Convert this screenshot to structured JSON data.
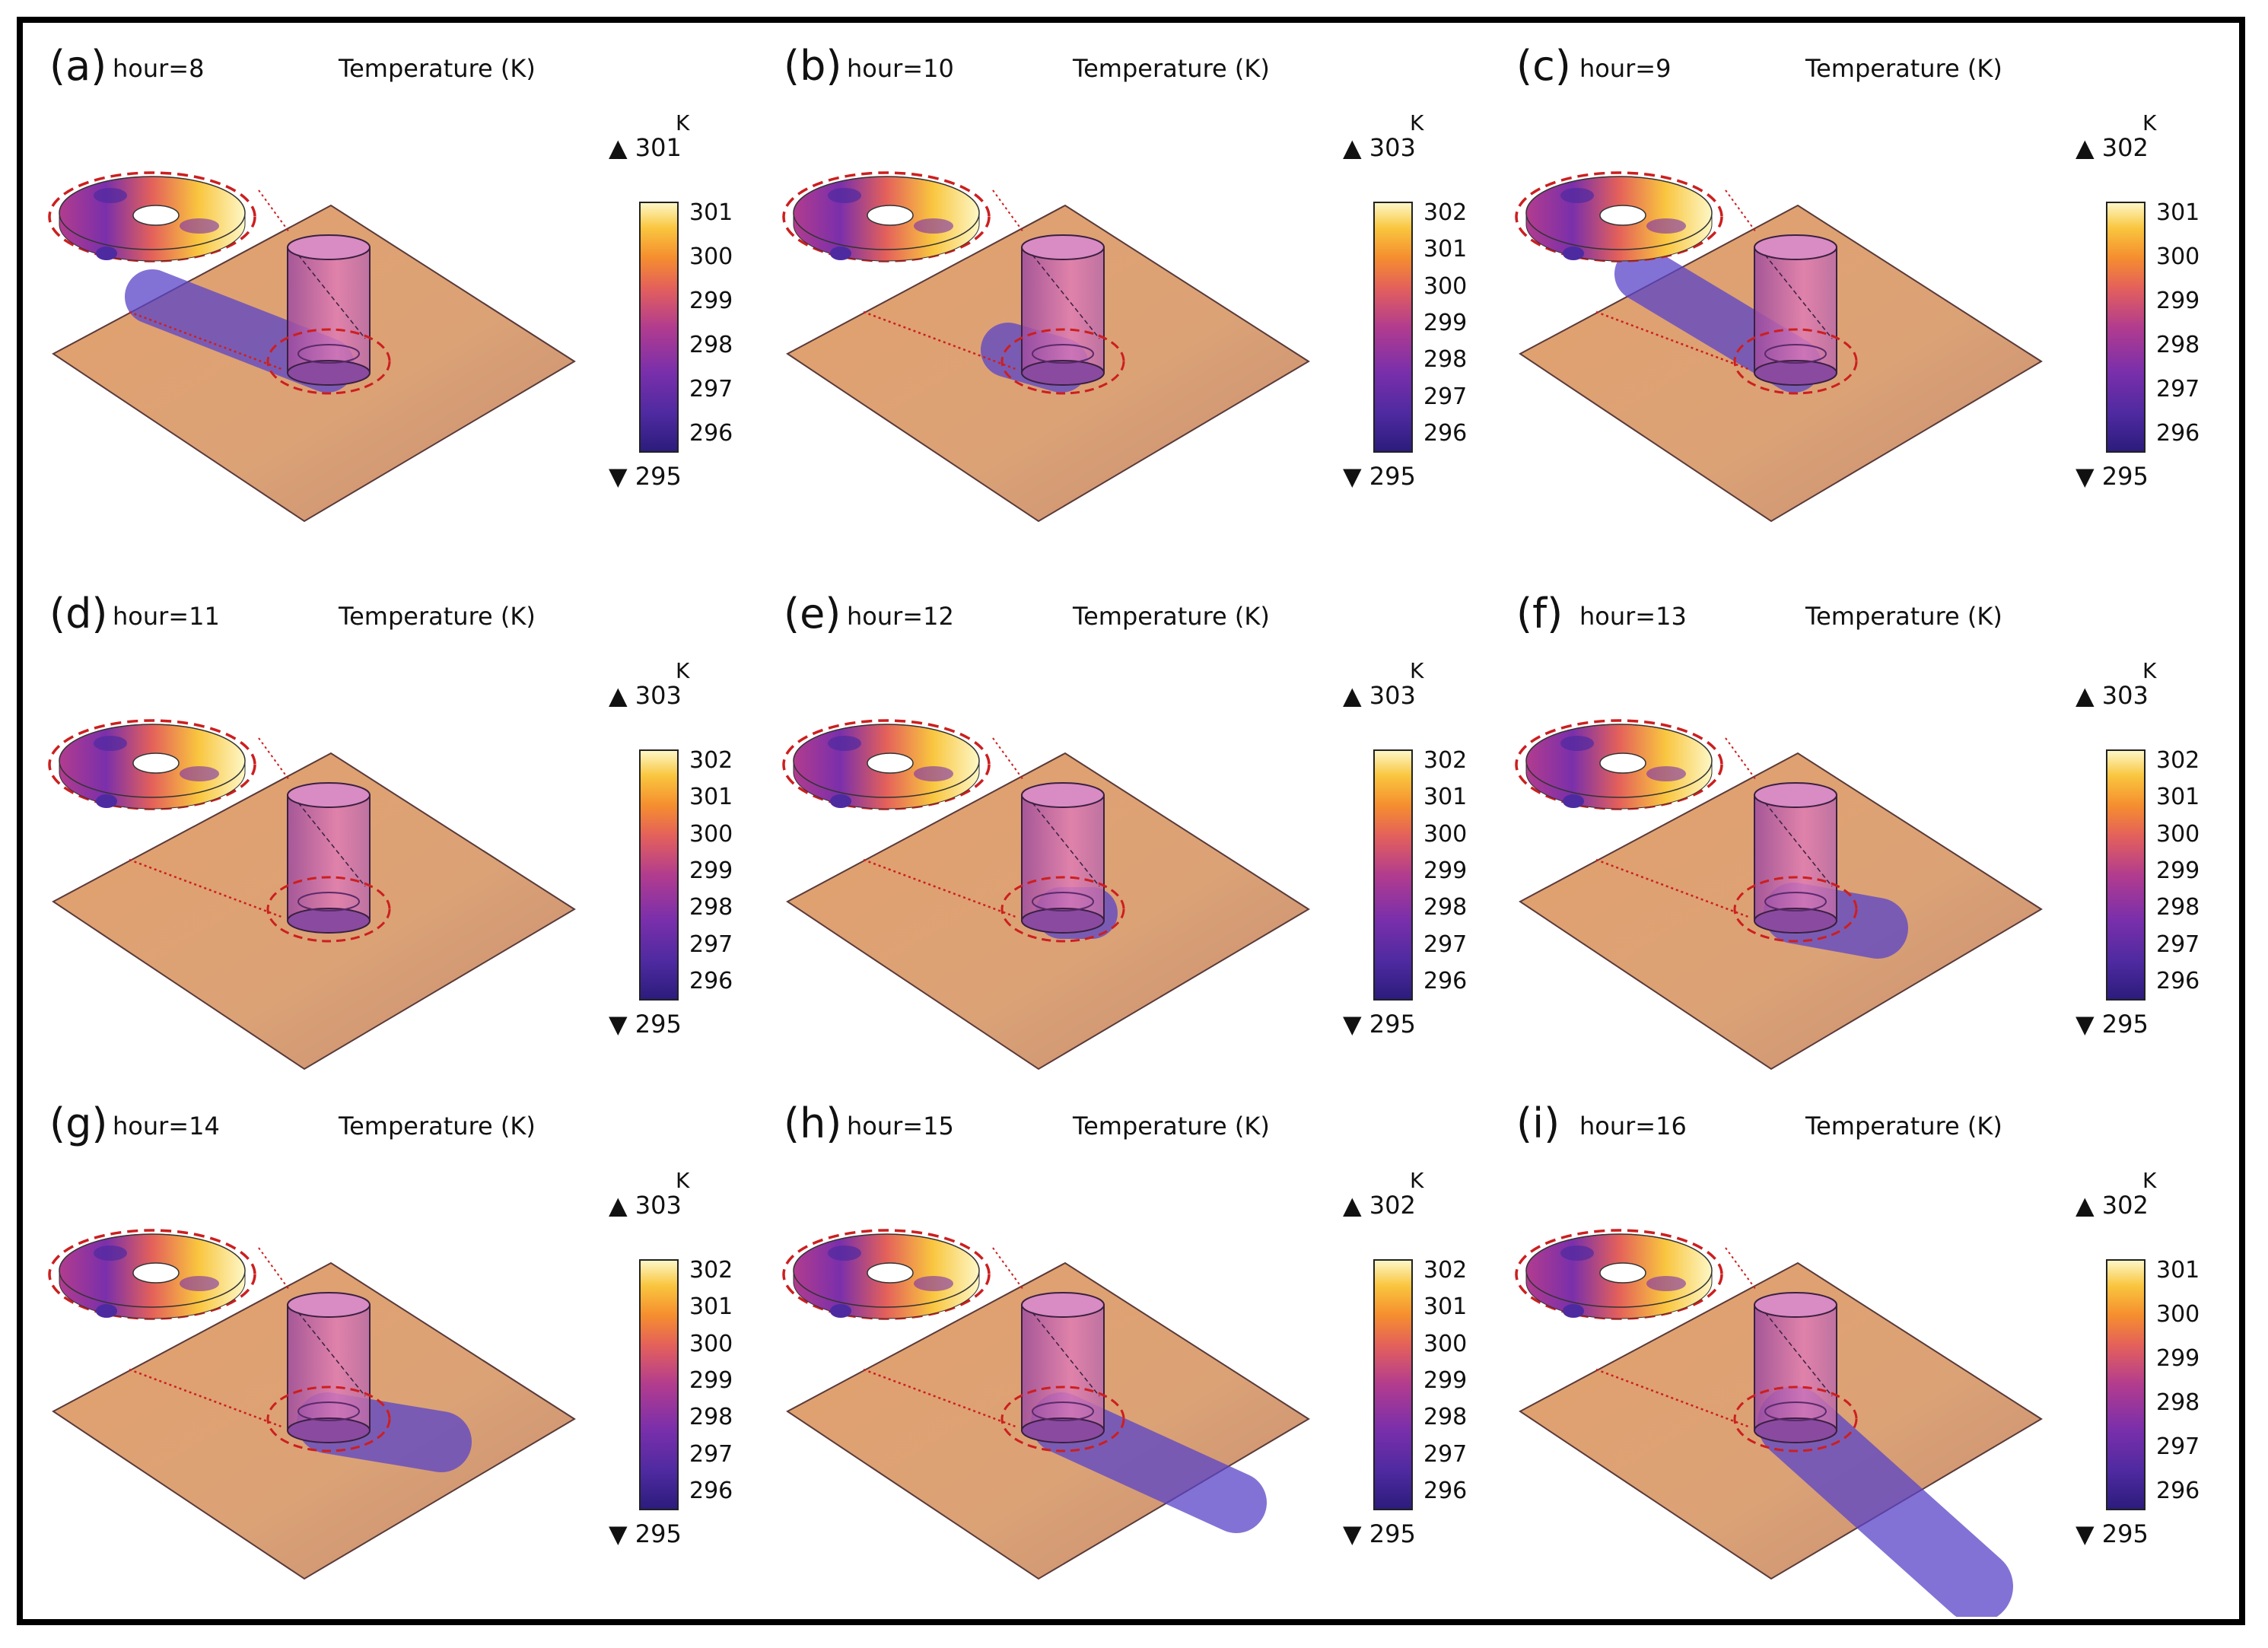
{
  "figure": {
    "colorbar_unit": "K",
    "colormap": [
      "#2c1c7c",
      "#4e2aa0",
      "#7a2fab",
      "#b23c8e",
      "#e4615a",
      "#f58e2f",
      "#f9c63f",
      "#fdf7c6"
    ],
    "highlight_color": "#cc1f1f"
  },
  "panels": [
    {
      "label": "(a)",
      "hour": "hour=8",
      "title": "Temperature (K)",
      "max": "▲ 301",
      "min": "▼ 295",
      "ticks": [
        "301",
        "300",
        "299",
        "298",
        "297",
        "296"
      ],
      "shadow": "short-left"
    },
    {
      "label": "(b)",
      "hour": "hour=10",
      "title": "Temperature (K)",
      "max": "▲ 303",
      "min": "▼ 295",
      "ticks": [
        "302",
        "301",
        "300",
        "299",
        "298",
        "297",
        "296"
      ],
      "shadow": "tiny"
    },
    {
      "label": "(c)",
      "hour": "hour=9",
      "title": "Temperature (K)",
      "max": "▲ 302",
      "min": "▼ 295",
      "ticks": [
        "301",
        "300",
        "299",
        "298",
        "297",
        "296"
      ],
      "shadow": "medium-left"
    },
    {
      "label": "(d)",
      "hour": "hour=11",
      "title": "Temperature (K)",
      "max": "▲ 303",
      "min": "▼ 295",
      "ticks": [
        "302",
        "301",
        "300",
        "299",
        "298",
        "297",
        "296"
      ],
      "shadow": "none"
    },
    {
      "label": "(e)",
      "hour": "hour=12",
      "title": "Temperature (K)",
      "max": "▲ 303",
      "min": "▼ 295",
      "ticks": [
        "302",
        "301",
        "300",
        "299",
        "298",
        "297",
        "296"
      ],
      "shadow": "tiny-right"
    },
    {
      "label": "(f)",
      "hour": "hour=13",
      "title": "Temperature (K)",
      "max": "▲ 303",
      "min": "▼ 295",
      "ticks": [
        "302",
        "301",
        "300",
        "299",
        "298",
        "297",
        "296"
      ],
      "shadow": "short-right"
    },
    {
      "label": "(g)",
      "hour": "hour=14",
      "title": "Temperature (K)",
      "max": "▲ 303",
      "min": "▼ 295",
      "ticks": [
        "302",
        "301",
        "300",
        "299",
        "298",
        "297",
        "296"
      ],
      "shadow": "medium-right"
    },
    {
      "label": "(h)",
      "hour": "hour=15",
      "title": "Temperature (K)",
      "max": "▲ 302",
      "min": "▼ 295",
      "ticks": [
        "302",
        "301",
        "300",
        "299",
        "298",
        "297",
        "296"
      ],
      "shadow": "long-right"
    },
    {
      "label": "(i)",
      "hour": "hour=16",
      "title": "Temperature (K)",
      "max": "▲ 302",
      "min": "▼ 295",
      "ticks": [
        "301",
        "300",
        "299",
        "298",
        "297",
        "296"
      ],
      "shadow": "very-long-right"
    }
  ]
}
